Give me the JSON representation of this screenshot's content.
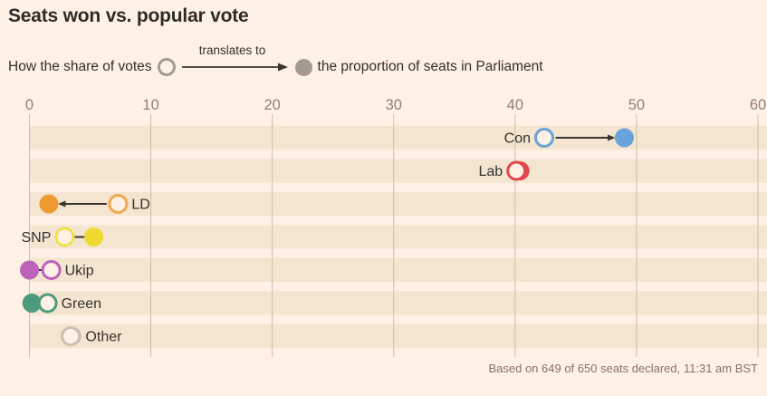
{
  "title": "Seats won vs. popular vote",
  "subtitle": {
    "prefix": "How the share of votes",
    "arrow_label": "translates to",
    "suffix": "the proportion of seats in Parliament"
  },
  "footer": "Based on 649 of 650 seats declared, 11:31 am BST",
  "chart_data": {
    "type": "scatter",
    "subtype": "dumbbell-arrow",
    "title": "Seats won vs. popular vote",
    "categories": [
      "Con",
      "Lab",
      "LD",
      "SNP",
      "Ukip",
      "Green",
      "Other"
    ],
    "series": [
      {
        "name": "Share of popular vote (%)",
        "marker": "open-circle",
        "values": [
          42.4,
          40.1,
          7.3,
          2.9,
          1.8,
          1.5,
          3.4
        ]
      },
      {
        "name": "Share of seats in Parliament (%)",
        "marker": "filled-circle",
        "values": [
          49.0,
          40.4,
          1.6,
          5.3,
          0.0,
          0.2,
          3.5
        ]
      }
    ],
    "rows": [
      {
        "party": "Con",
        "color": "#6AA3DB",
        "open_color": "#6AA3DB",
        "label_side": "left",
        "connector": "arrow"
      },
      {
        "party": "Lab",
        "color": "#E0484E",
        "open_color": "#E0484E",
        "label_side": "left",
        "connector": "none"
      },
      {
        "party": "LD",
        "color": "#EE9A31",
        "open_color": "#F0A94C",
        "label_side": "right",
        "connector": "arrow"
      },
      {
        "party": "SNP",
        "color": "#EDD92F",
        "open_color": "#EFE14E",
        "label_side": "left",
        "connector": "line"
      },
      {
        "party": "Ukip",
        "color": "#BD62BB",
        "open_color": "#BD62BB",
        "label_side": "right",
        "connector": "line"
      },
      {
        "party": "Green",
        "color": "#4D9B7C",
        "open_color": "#4D9B7C",
        "label_side": "right",
        "connector": "none"
      },
      {
        "party": "Other",
        "color": "#CBC0B3",
        "open_color": "#CBC0B3",
        "label_side": "right",
        "connector": "none"
      }
    ],
    "axis": {
      "min": 0,
      "max": 60,
      "ticks": [
        0,
        10,
        20,
        30,
        40,
        50,
        60
      ],
      "position": "top",
      "unit": "%"
    },
    "grid": true,
    "legend_position": "above-chart-inline",
    "colors": {
      "background": "#FFF1E5",
      "band": "#F4E5D1",
      "gridline": "#CFBDA8",
      "text": "#33302C",
      "axis_text": "#8D8371",
      "footer_text": "#7E7567",
      "neutral_marker": "#A39B91",
      "connector": "#3A362F"
    }
  }
}
